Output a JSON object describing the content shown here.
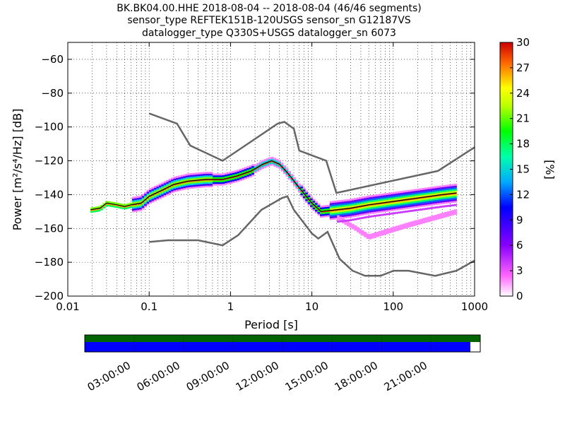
{
  "chart_data": {
    "type": "heatmap",
    "title_lines": [
      "BK.BK04.00.HHE   2018-08-04 -- 2018-08-04  (46/46 segments)",
      "sensor_type REFTEK151B-120USGS sensor_sn G12187VS",
      "datalogger_type Q330S+USGS datalogger_sn 6073"
    ],
    "xlabel": "Period [s]",
    "ylabel": "Power [m²/s⁴/Hz] [dB]",
    "x_scale": "log",
    "xlim": [
      0.01,
      1000
    ],
    "ylim": [
      -200,
      -50
    ],
    "x_ticks": [
      {
        "v": 0.01,
        "label": "0.01"
      },
      {
        "v": 0.1,
        "label": "0.1"
      },
      {
        "v": 1,
        "label": "1"
      },
      {
        "v": 10,
        "label": "10"
      },
      {
        "v": 100,
        "label": "100"
      },
      {
        "v": 1000,
        "label": "1000"
      }
    ],
    "y_ticks": [
      -200,
      -180,
      -160,
      -140,
      -120,
      -100,
      -80,
      -60
    ],
    "grid": true,
    "colorbar": {
      "label": "[%]",
      "range": [
        0,
        30
      ],
      "ticks": [
        0,
        3,
        6,
        9,
        12,
        15,
        18,
        21,
        24,
        27,
        30
      ]
    },
    "noise_models": {
      "high": [
        [
          0.1,
          -92
        ],
        [
          0.22,
          -98
        ],
        [
          0.32,
          -111
        ],
        [
          0.8,
          -120
        ],
        [
          3.8,
          -98
        ],
        [
          4.6,
          -97
        ],
        [
          6,
          -101
        ],
        [
          7,
          -114
        ],
        [
          15,
          -120
        ],
        [
          20,
          -139
        ],
        [
          354,
          -126
        ],
        [
          1000,
          -112
        ]
      ],
      "low": [
        [
          0.1,
          -168
        ],
        [
          0.17,
          -167
        ],
        [
          0.4,
          -167
        ],
        [
          0.8,
          -170
        ],
        [
          1.24,
          -164
        ],
        [
          2.4,
          -149
        ],
        [
          4.3,
          -142
        ],
        [
          5,
          -141
        ],
        [
          6,
          -149
        ],
        [
          10,
          -163
        ],
        [
          12,
          -166
        ],
        [
          15.6,
          -162
        ],
        [
          21.9,
          -178
        ],
        [
          31.6,
          -185
        ],
        [
          45,
          -188
        ],
        [
          70,
          -188
        ],
        [
          101,
          -185
        ],
        [
          154,
          -185
        ],
        [
          328,
          -188
        ],
        [
          600,
          -185
        ],
        [
          1000,
          -179
        ]
      ]
    },
    "median_curve": [
      [
        0.019,
        -149
      ],
      [
        0.025,
        -148
      ],
      [
        0.03,
        -145
      ],
      [
        0.04,
        -146
      ],
      [
        0.05,
        -147
      ],
      [
        0.06,
        -146
      ],
      [
        0.08,
        -145
      ],
      [
        0.1,
        -141
      ],
      [
        0.15,
        -137
      ],
      [
        0.2,
        -134
      ],
      [
        0.3,
        -132
      ],
      [
        0.5,
        -131
      ],
      [
        0.8,
        -131
      ],
      [
        1.2,
        -129
      ],
      [
        1.8,
        -126
      ],
      [
        2.5,
        -122
      ],
      [
        3.2,
        -120
      ],
      [
        4,
        -122
      ],
      [
        5,
        -127
      ],
      [
        7,
        -136
      ],
      [
        10,
        -145
      ],
      [
        13,
        -150
      ],
      [
        20,
        -149
      ],
      [
        30,
        -148
      ],
      [
        50,
        -146
      ],
      [
        100,
        -144
      ],
      [
        200,
        -142
      ],
      [
        400,
        -140
      ],
      [
        600,
        -139
      ]
    ],
    "secondary_curve": [
      [
        20,
        -153
      ],
      [
        35,
        -160
      ],
      [
        50,
        -165
      ],
      [
        80,
        -162
      ],
      [
        150,
        -158
      ],
      [
        300,
        -154
      ],
      [
        600,
        -150
      ]
    ],
    "timeline": {
      "labels": [
        "03:00:00",
        "06:00:00",
        "09:00:00",
        "12:00:00",
        "15:00:00",
        "18:00:00",
        "21:00:00"
      ],
      "coverage_fraction": 0.975,
      "colors": {
        "data": "#006400",
        "gaps": "#0000ff"
      }
    }
  }
}
